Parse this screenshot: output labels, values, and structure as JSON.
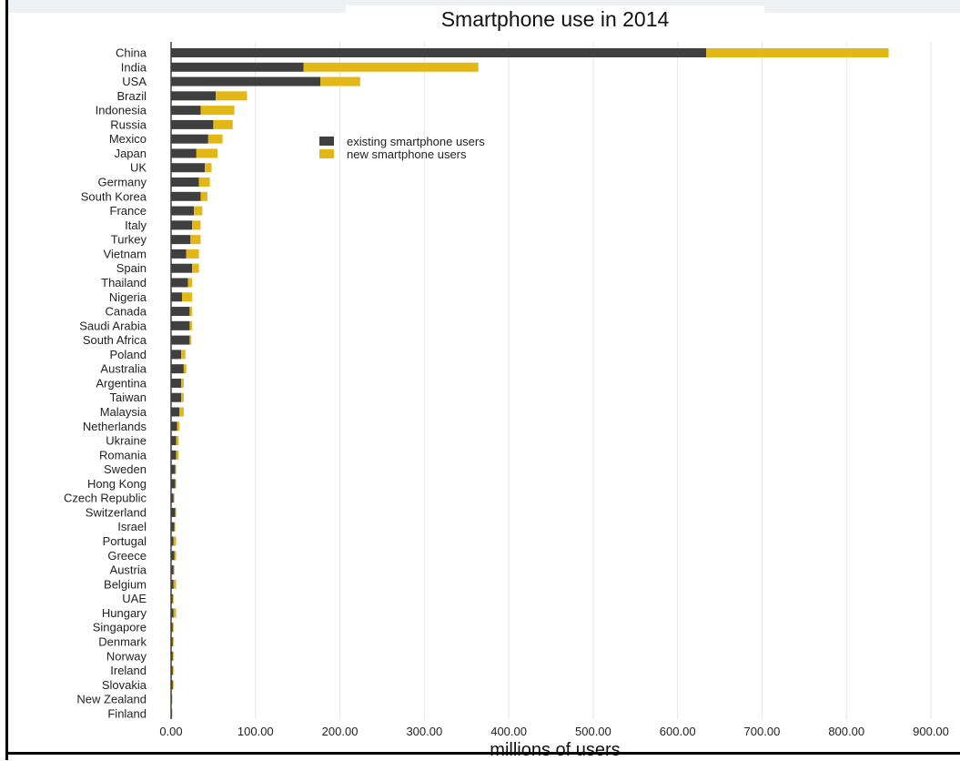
{
  "colors": {
    "existing": "#3f3f3f",
    "new": "#e2b716",
    "grid": "#e6e6e6",
    "axis": "#111111"
  },
  "chart_data": {
    "type": "bar",
    "orientation": "horizontal",
    "stacked": true,
    "title": "Smartphone use in 2014",
    "xlabel": "millions of users",
    "ylabel": "",
    "xlim": [
      0,
      900
    ],
    "xticks": [
      0,
      100,
      200,
      300,
      400,
      500,
      600,
      700,
      800,
      900
    ],
    "xtick_labels": [
      "0.00",
      "100.00",
      "200.00",
      "300.00",
      "400.00",
      "500.00",
      "600.00",
      "700.00",
      "800.00",
      "900.00"
    ],
    "grid": "vertical",
    "legend_position": "upper-middle",
    "categories": [
      "China",
      "India",
      "USA",
      "Brazil",
      "Indonesia",
      "Russia",
      "Mexico",
      "Japan",
      "UK",
      "Germany",
      "South Korea",
      "France",
      "Italy",
      "Turkey",
      "Vietnam",
      "Spain",
      "Thailand",
      "Nigeria",
      "Canada",
      "Saudi Arabia",
      "South Africa",
      "Poland",
      "Australia",
      "Argentina",
      "Taiwan",
      "Malaysia",
      "Netherlands",
      "Ukraine",
      "Romania",
      "Sweden",
      "Hong Kong",
      "Czech Republic",
      "Switzerland",
      "Israel",
      "Portugal",
      "Greece",
      "Austria",
      "Belgium",
      "UAE",
      "Hungary",
      "Singapore",
      "Denmark",
      "Norway",
      "Ireland",
      "Slovakia",
      "New Zealand",
      "Finland"
    ],
    "series": [
      {
        "name": "existing smartphone users",
        "values": [
          634,
          157,
          177,
          53,
          35,
          50,
          44,
          30,
          40,
          33,
          35,
          27,
          25,
          23,
          18,
          25,
          20,
          13,
          22,
          22,
          22,
          12,
          15,
          12,
          12,
          10,
          7,
          6,
          6,
          5,
          5,
          3,
          5,
          4,
          3,
          4,
          3,
          3,
          2,
          3,
          2,
          2,
          2,
          2,
          2,
          1,
          1
        ]
      },
      {
        "name": "new smartphone users",
        "values": [
          216,
          207,
          47,
          37,
          40,
          23,
          17,
          25,
          8,
          13,
          8,
          10,
          10,
          12,
          15,
          8,
          5,
          12,
          3,
          3,
          2,
          5,
          3,
          3,
          3,
          5,
          3,
          3,
          3,
          1,
          1,
          1,
          1,
          1,
          3,
          2,
          1,
          3,
          1,
          3,
          1,
          1,
          1,
          1,
          1,
          0.5,
          0.5
        ]
      }
    ]
  }
}
